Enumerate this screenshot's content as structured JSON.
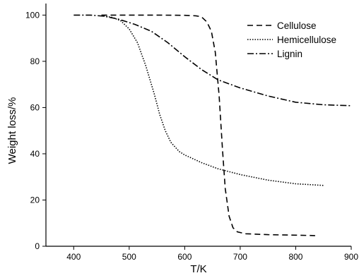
{
  "chart_data": {
    "type": "line",
    "title": "",
    "xlabel": "T/K",
    "ylabel": "Weight loss/%",
    "xlim": [
      350,
      900
    ],
    "ylim": [
      0,
      105
    ],
    "x_ticks": [
      400,
      500,
      600,
      700,
      800,
      900
    ],
    "y_ticks": [
      0,
      20,
      40,
      60,
      80,
      100
    ],
    "legend_position": "top-right",
    "grid": false,
    "series": [
      {
        "name": "Cellulose",
        "dash": "dashed",
        "points": [
          [
            450,
            100
          ],
          [
            500,
            100
          ],
          [
            550,
            100
          ],
          [
            600,
            99.9
          ],
          [
            620,
            99.7
          ],
          [
            630,
            99.3
          ],
          [
            640,
            97
          ],
          [
            648,
            93
          ],
          [
            655,
            84
          ],
          [
            662,
            65
          ],
          [
            668,
            42
          ],
          [
            673,
            25
          ],
          [
            680,
            13
          ],
          [
            687,
            8
          ],
          [
            695,
            6.2
          ],
          [
            710,
            5.4
          ],
          [
            750,
            5.0
          ],
          [
            800,
            4.8
          ],
          [
            835,
            4.6
          ]
        ]
      },
      {
        "name": "Hemicellulose",
        "dash": "dotted",
        "points": [
          [
            450,
            99.8
          ],
          [
            470,
            99
          ],
          [
            485,
            97.5
          ],
          [
            500,
            94
          ],
          [
            515,
            88
          ],
          [
            530,
            78
          ],
          [
            545,
            66
          ],
          [
            555,
            57
          ],
          [
            565,
            50
          ],
          [
            575,
            45
          ],
          [
            590,
            41
          ],
          [
            600,
            39.5
          ],
          [
            630,
            36.2
          ],
          [
            660,
            33.5
          ],
          [
            700,
            31
          ],
          [
            750,
            28.6
          ],
          [
            800,
            27
          ],
          [
            850,
            26.3
          ]
        ]
      },
      {
        "name": "Lignin",
        "dash": "dashdot",
        "points": [
          [
            400,
            100
          ],
          [
            430,
            100
          ],
          [
            455,
            99.5
          ],
          [
            480,
            98.3
          ],
          [
            510,
            96
          ],
          [
            540,
            93
          ],
          [
            570,
            88
          ],
          [
            600,
            82
          ],
          [
            630,
            76.5
          ],
          [
            660,
            72
          ],
          [
            700,
            68.5
          ],
          [
            750,
            65
          ],
          [
            800,
            62.3
          ],
          [
            850,
            61.2
          ],
          [
            900,
            60.8
          ]
        ]
      }
    ]
  }
}
